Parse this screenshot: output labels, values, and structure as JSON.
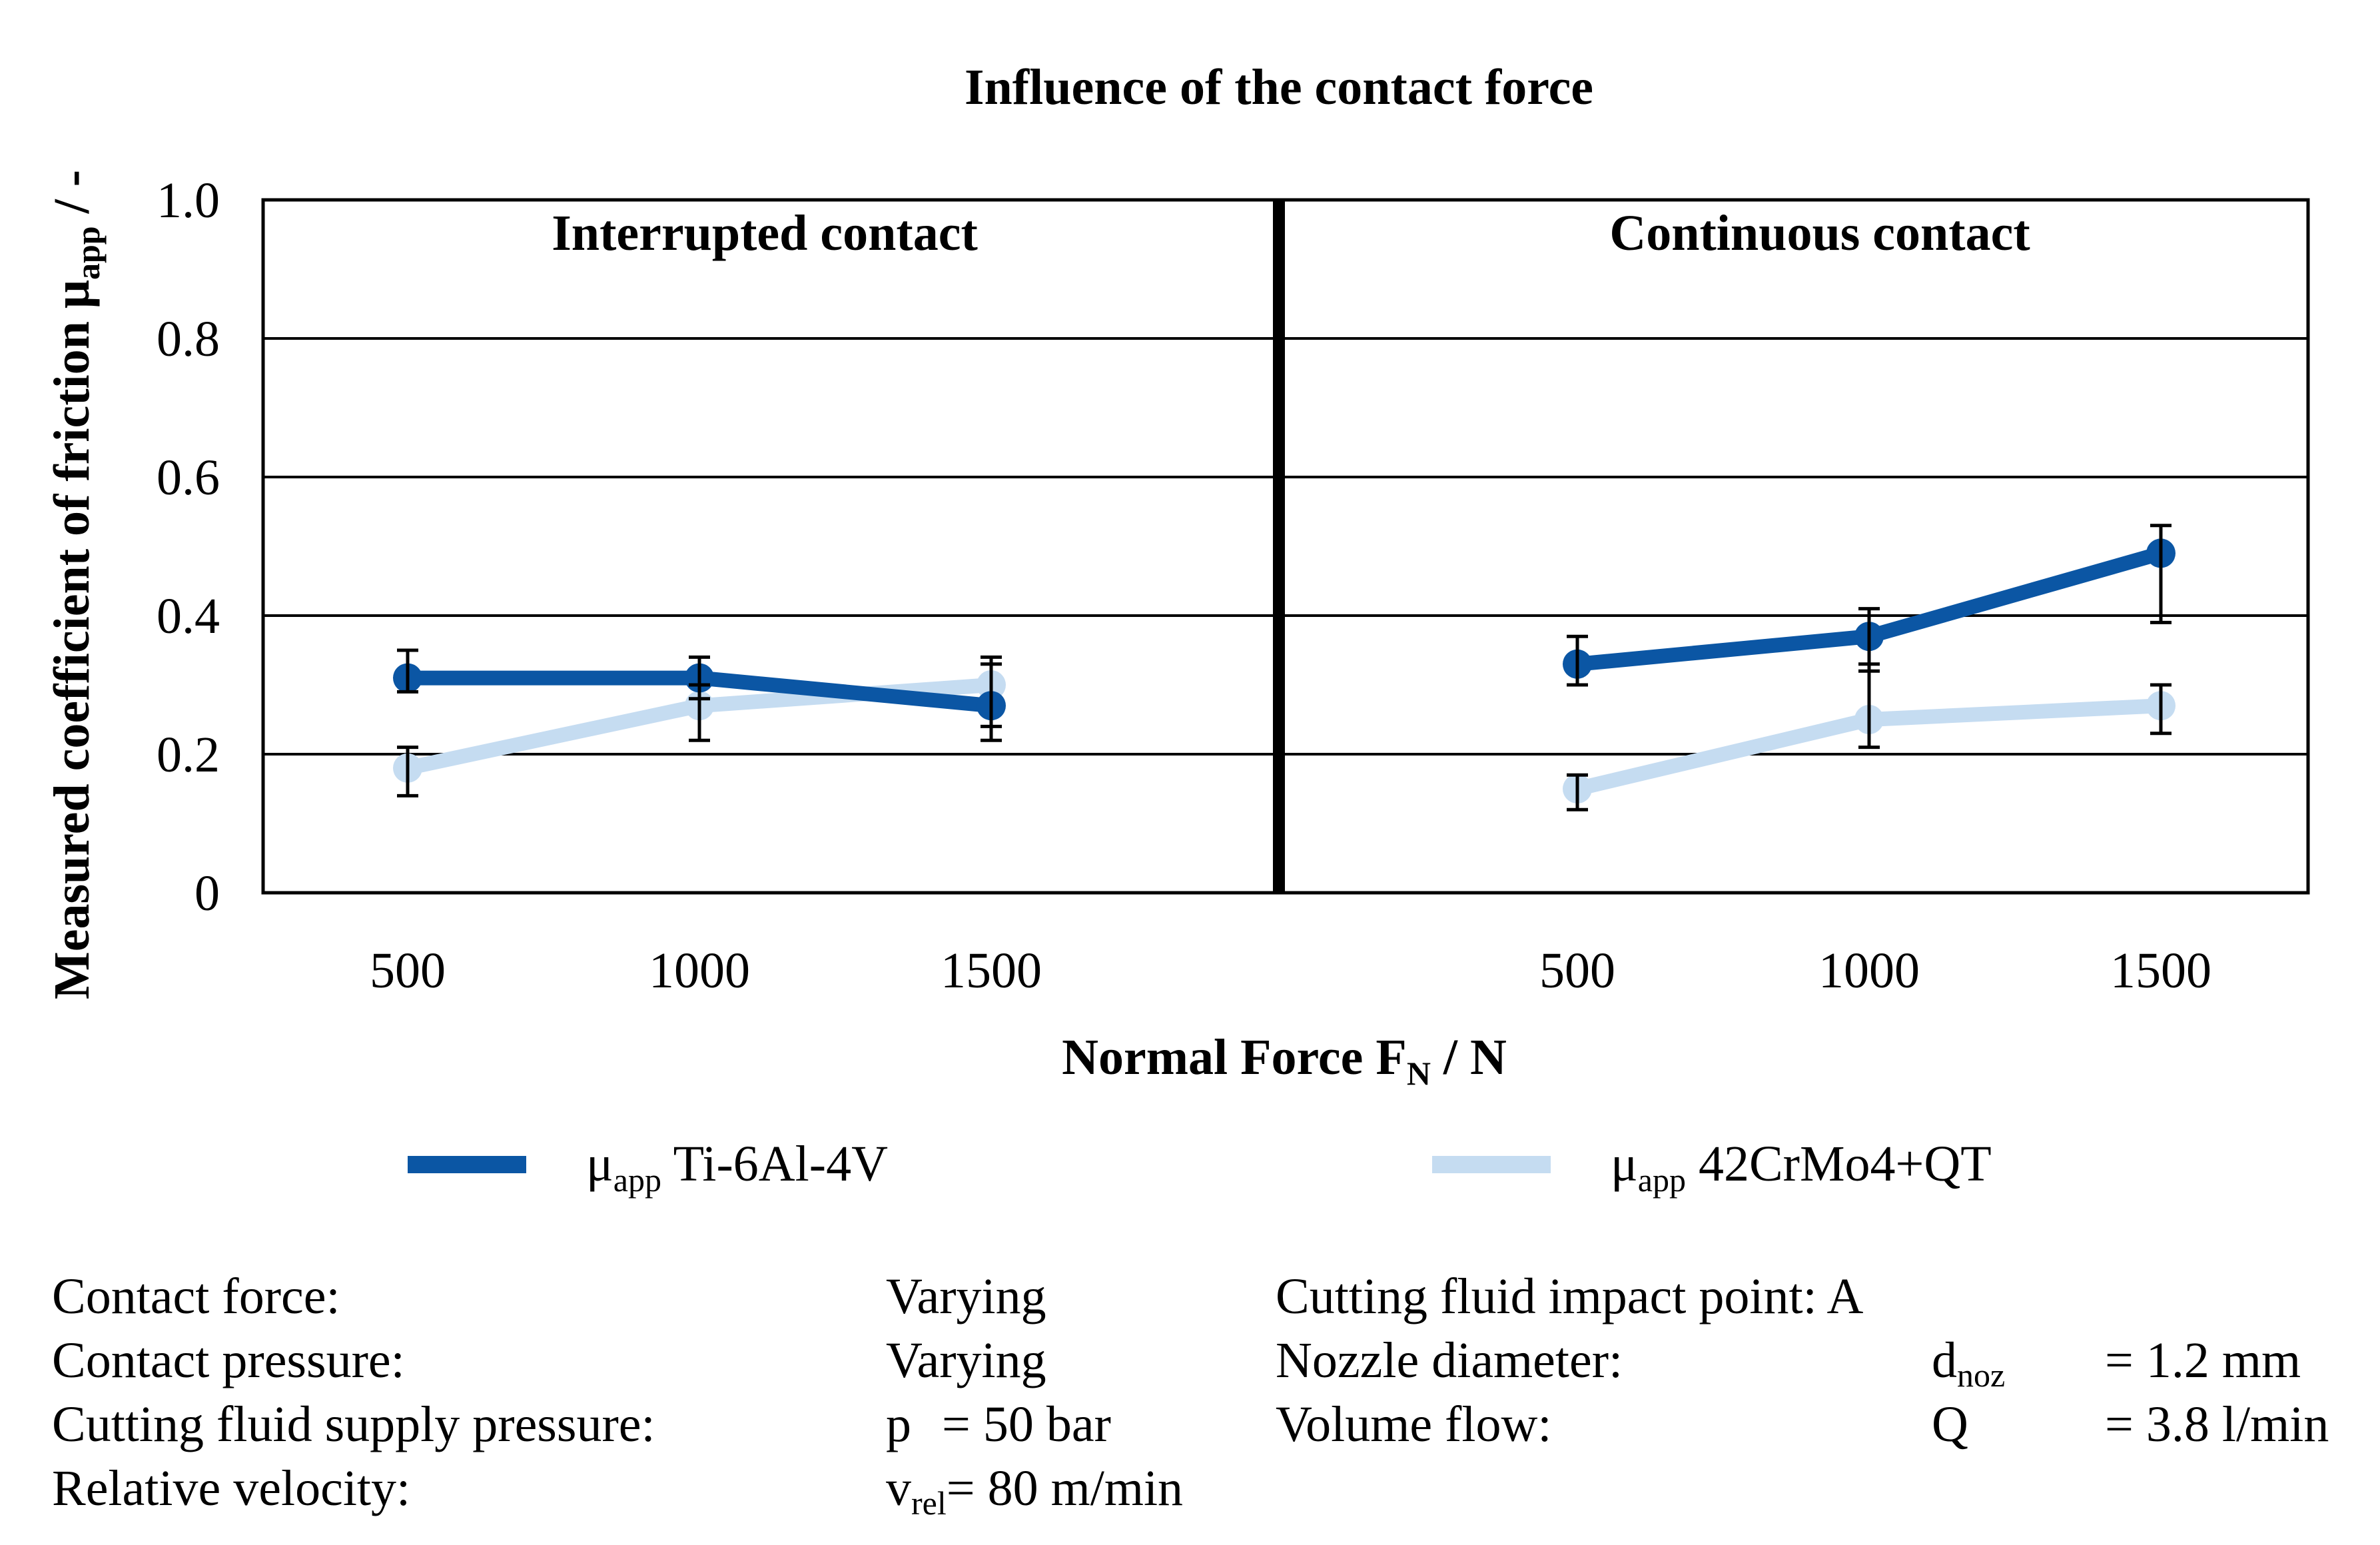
{
  "chart_data": {
    "type": "line",
    "title": "Influence of the contact force",
    "xlabel": "Normal Force",
    "xlabel_symbol": "F",
    "xlabel_sub": "N",
    "xlabel_unit": " / N",
    "ylabel": "Measured coefficient of friction μ",
    "ylabel_sub": "app",
    "ylabel_unit": " / -",
    "ylim": [
      0,
      1.0
    ],
    "yticks": [
      "0",
      "0.2",
      "0.4",
      "0.6",
      "0.8",
      "1.0"
    ],
    "grid": true,
    "legend_position": "bottom",
    "panels": [
      {
        "title": "Interrupted contact",
        "categories": [
          "500",
          "1000",
          "1500"
        ],
        "series": [
          {
            "name": "Ti-6Al-4V",
            "values": [
              0.31,
              0.31,
              0.27
            ],
            "err_low": [
              0.29,
              0.28,
              0.22
            ],
            "err_high": [
              0.35,
              0.34,
              0.33
            ],
            "color": "#0B56A4"
          },
          {
            "name": "42CrMo4+QT",
            "values": [
              0.18,
              0.27,
              0.3
            ],
            "err_low": [
              0.14,
              0.22,
              0.24
            ],
            "err_high": [
              0.21,
              0.3,
              0.34
            ],
            "color": "#C5DCF1"
          }
        ]
      },
      {
        "title": "Continuous contact",
        "categories": [
          "500",
          "1000",
          "1500"
        ],
        "series": [
          {
            "name": "Ti-6Al-4V",
            "values": [
              0.33,
              0.37,
              0.49
            ],
            "err_low": [
              0.3,
              0.32,
              0.39
            ],
            "err_high": [
              0.37,
              0.41,
              0.53
            ],
            "color": "#0B56A4"
          },
          {
            "name": "42CrMo4+QT",
            "values": [
              0.15,
              0.25,
              0.27
            ],
            "err_low": [
              0.12,
              0.21,
              0.23
            ],
            "err_high": [
              0.17,
              0.33,
              0.3
            ],
            "color": "#C5DCF1"
          }
        ]
      }
    ],
    "legend": [
      {
        "prefix": "μ",
        "sub": "app",
        "label": "Ti-6Al-4V",
        "color": "#0B56A4"
      },
      {
        "prefix": "μ",
        "sub": "app",
        "label": "42CrMo4+QT",
        "color": "#C5DCF1"
      }
    ]
  },
  "parameters": {
    "labels": [
      "Contact force:",
      "Contact pressure:",
      "Cutting fluid supply pressure:",
      "Relative velocity:"
    ],
    "values": {
      "contact_force": "Varying",
      "contact_pressure": "Varying",
      "pressure_symbol": "p",
      "pressure_value": "= 50 bar",
      "velocity_symbol": "v",
      "velocity_sub": "rel",
      "velocity_value": "= 80 m/min"
    },
    "right_labels": [
      "Cutting fluid impact point: A",
      "Nozzle diameter:",
      "Volume flow:"
    ],
    "nozzle_symbol": "d",
    "nozzle_sub": "noz",
    "nozzle_value": "= 1.2 mm",
    "flow_symbol": "Q",
    "flow_value": "= 3.8 l/min"
  }
}
